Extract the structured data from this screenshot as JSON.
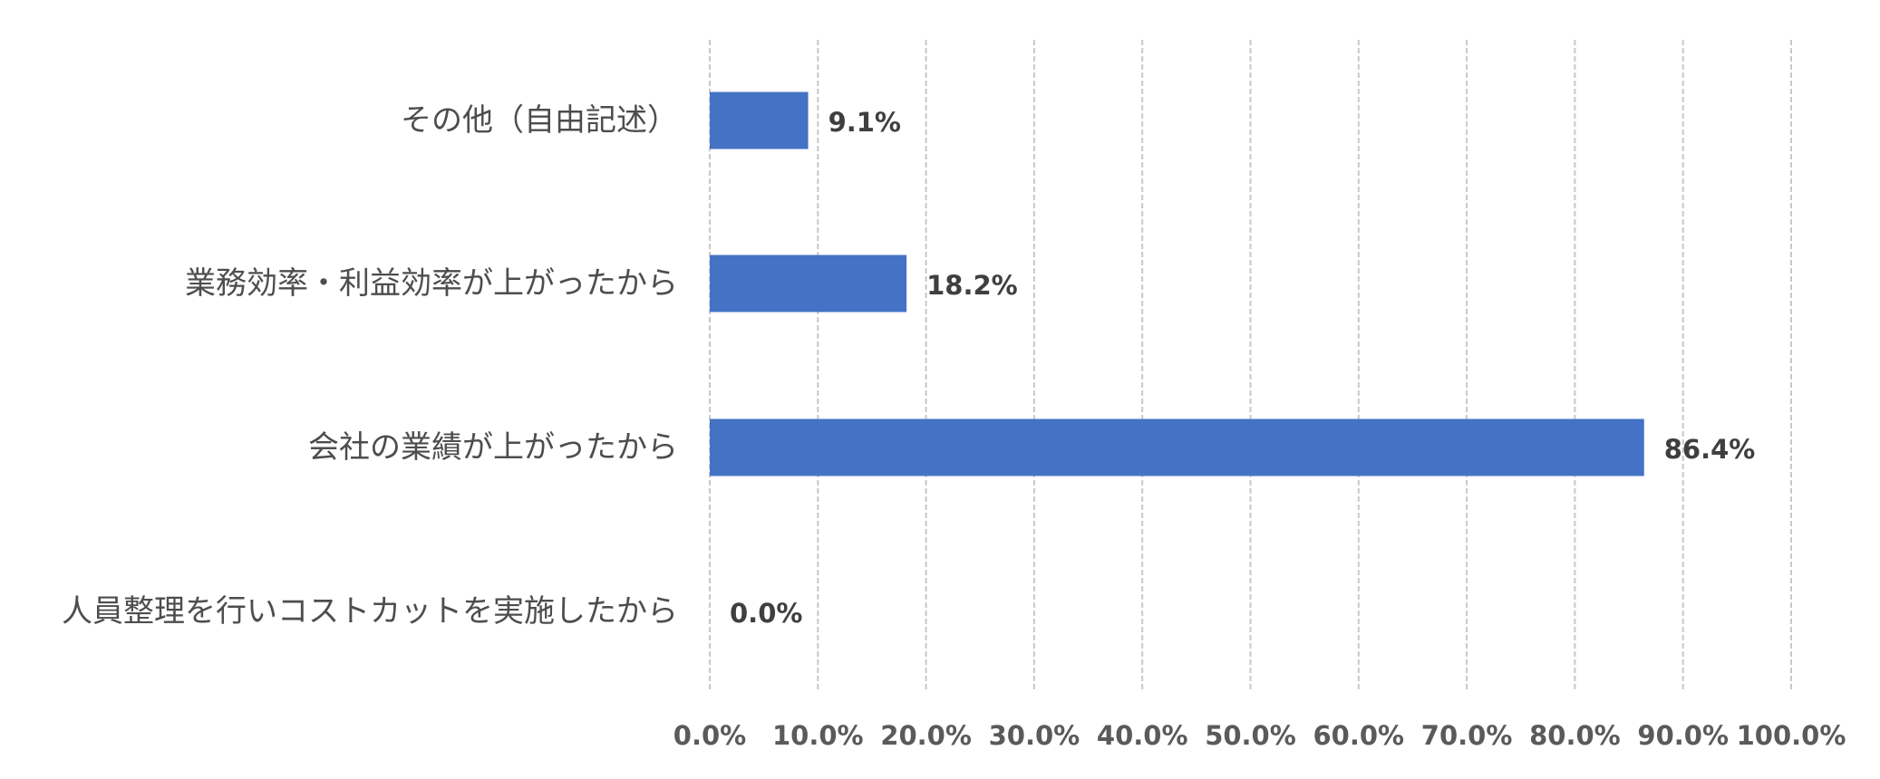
{
  "chart_data": {
    "type": "bar",
    "orientation": "horizontal",
    "categories": [
      "その他（自由記述）",
      "業務効率・利益効率が上がったから",
      "会社の業績が上がったから",
      "人員整理を行いコストカットを実施したから"
    ],
    "values": [
      9.1,
      18.2,
      86.4,
      0.0
    ],
    "value_labels": [
      "9.1%",
      "18.2%",
      "86.4%",
      "0.0%"
    ],
    "xlim": [
      0,
      100
    ],
    "x_ticks": [
      0,
      10,
      20,
      30,
      40,
      50,
      60,
      70,
      80,
      90,
      100
    ],
    "x_tick_labels": [
      "0.0%",
      "10.0%",
      "20.0%",
      "30.0%",
      "40.0%",
      "50.0%",
      "60.0%",
      "70.0%",
      "80.0%",
      "90.0%",
      "100.0%"
    ],
    "title": "",
    "xlabel": "",
    "ylabel": "",
    "grid": true,
    "legend": "none",
    "bar_color": "#4472c4"
  }
}
